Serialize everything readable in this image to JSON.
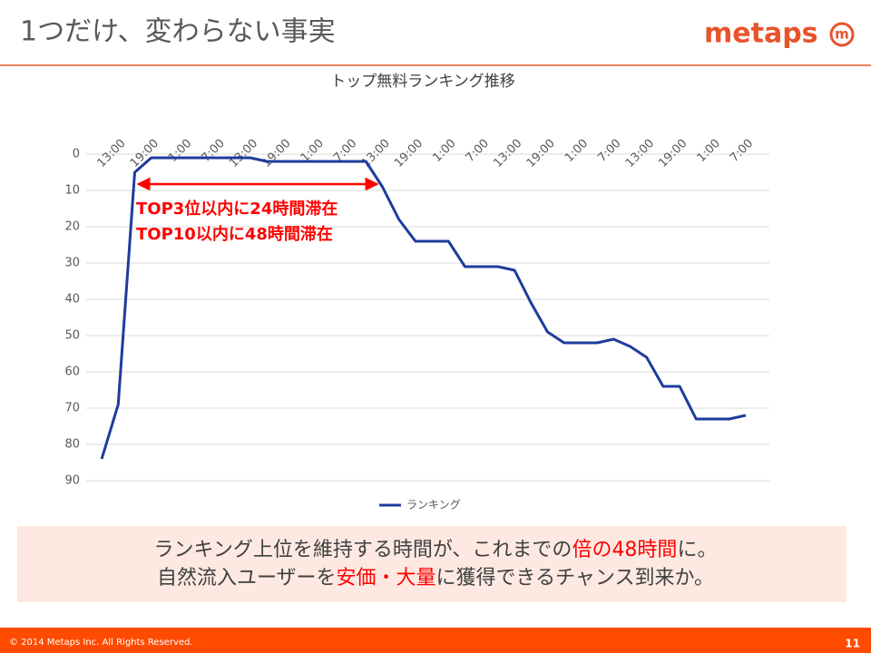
{
  "header": {
    "title": "1つだけ、変わらない事実",
    "logo": "metaps",
    "logo_mark": "m"
  },
  "chart_data": {
    "type": "line",
    "title": "トップ無料ランキング推移",
    "categories": [
      null,
      "13:00",
      null,
      "19:00",
      null,
      "1:00",
      null,
      "7:00",
      null,
      "13:00",
      null,
      "19:00",
      null,
      "1:00",
      null,
      "7:00",
      null,
      "13:00",
      null,
      "19:00",
      null,
      "1:00",
      null,
      "7:00",
      null,
      "13:00",
      null,
      "19:00",
      null,
      "1:00",
      null,
      "7:00",
      null,
      "13:00",
      null,
      "19:00",
      null,
      "1:00",
      null,
      "7:00"
    ],
    "series": [
      {
        "name": "ランキング",
        "color": "#1f3c9c",
        "values": [
          84,
          69,
          5,
          1,
          1,
          1,
          1,
          1,
          1,
          1,
          2,
          2,
          2,
          2,
          2,
          2,
          2,
          9,
          18,
          24,
          24,
          24,
          31,
          31,
          31,
          32,
          41,
          49,
          52,
          52,
          52,
          51,
          53,
          56,
          64,
          64,
          73,
          73,
          73,
          72
        ]
      }
    ],
    "ylim": [
      0,
      90
    ],
    "yticks": [
      0,
      10,
      20,
      30,
      40,
      50,
      60,
      70,
      80,
      90
    ],
    "y_reversed": true,
    "grid": true,
    "legend": "bottom",
    "annotations": [
      "TOP3位以内に24時間滞在",
      "TOP10以内に48時間滞在"
    ]
  },
  "message": {
    "lines": [
      [
        {
          "text": "ランキング上位を維持する時間が、これまでの",
          "highlight": false
        },
        {
          "text": "倍の48時間",
          "highlight": true
        },
        {
          "text": "に。",
          "highlight": false
        }
      ],
      [
        {
          "text": "自然流入ユーザーを",
          "highlight": false
        },
        {
          "text": "安価・大量",
          "highlight": true
        },
        {
          "text": "に獲得できるチャンス到来か。",
          "highlight": false
        }
      ]
    ]
  },
  "footer": {
    "copyright": "© 2014 Metaps Inc.  All Rights Reserved.",
    "page": "11"
  }
}
